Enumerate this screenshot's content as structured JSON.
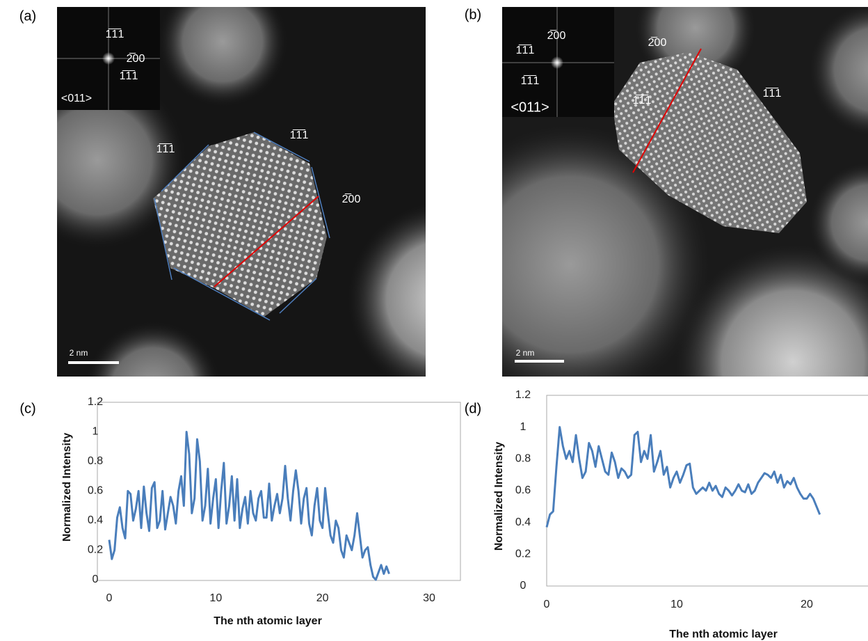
{
  "panel_labels": [
    "(a)",
    "(b)",
    "(c)",
    "(d)"
  ],
  "images": [
    {
      "inset_annotations": [
        "1̅1̅1",
        "2̅00",
        "1̅1̅1",
        "<011>"
      ],
      "annotations": [
        "1̅1̅1",
        "1̅1̅1",
        "2̅00"
      ],
      "scale_bar": "2 nm"
    },
    {
      "inset_annotations": [
        "2̅00",
        "1̅1̅1",
        "1̅1̅1",
        "<011>"
      ],
      "annotations": [
        "2̅00",
        "1̅1̅1",
        "1̅1̅1"
      ],
      "scale_bar": "2 nm"
    }
  ],
  "chart_data": [
    {
      "type": "line",
      "x_label": "The nth atomic layer",
      "y_label": "Normalized Intensity",
      "color": "#4a7ebb",
      "xlim": [
        0,
        30
      ],
      "xticks": [
        0,
        10,
        20,
        30
      ],
      "ylim": [
        0,
        1.2
      ],
      "yticks": [
        0,
        0.2,
        0.4,
        0.6,
        0.8,
        1,
        1.2
      ],
      "x": [
        0,
        0.25,
        0.5,
        0.75,
        1,
        1.25,
        1.5,
        1.75,
        2,
        2.25,
        2.5,
        2.75,
        3,
        3.25,
        3.5,
        3.75,
        4,
        4.25,
        4.5,
        4.75,
        5,
        5.25,
        5.5,
        5.75,
        6,
        6.25,
        6.5,
        6.75,
        7,
        7.25,
        7.5,
        7.75,
        8,
        8.25,
        8.5,
        8.75,
        9,
        9.25,
        9.5,
        9.75,
        10,
        10.25,
        10.5,
        10.75,
        11,
        11.25,
        11.5,
        11.75,
        12,
        12.25,
        12.5,
        12.75,
        13,
        13.25,
        13.5,
        13.75,
        14,
        14.25,
        14.5,
        14.75,
        15,
        15.25,
        15.5,
        15.75,
        16,
        16.25,
        16.5,
        16.75,
        17,
        17.25,
        17.5,
        17.75,
        18,
        18.25,
        18.5,
        18.75,
        19,
        19.25,
        19.5,
        19.75,
        20,
        20.25,
        20.5,
        20.75,
        21,
        21.25,
        21.5,
        21.75,
        22,
        22.25,
        22.5,
        22.75,
        23,
        23.25,
        23.5,
        23.75,
        24,
        24.25,
        24.5,
        24.75,
        25,
        25.25,
        25.5,
        25.75,
        26,
        26.25
      ],
      "values": [
        0.27,
        0.14,
        0.2,
        0.42,
        0.49,
        0.35,
        0.28,
        0.6,
        0.58,
        0.4,
        0.48,
        0.6,
        0.35,
        0.63,
        0.45,
        0.33,
        0.62,
        0.66,
        0.35,
        0.4,
        0.6,
        0.34,
        0.45,
        0.56,
        0.5,
        0.38,
        0.6,
        0.7,
        0.5,
        1.0,
        0.85,
        0.45,
        0.55,
        0.95,
        0.8,
        0.4,
        0.5,
        0.75,
        0.38,
        0.55,
        0.68,
        0.35,
        0.6,
        0.79,
        0.38,
        0.5,
        0.7,
        0.4,
        0.68,
        0.35,
        0.48,
        0.56,
        0.38,
        0.6,
        0.45,
        0.4,
        0.55,
        0.6,
        0.42,
        0.42,
        0.65,
        0.4,
        0.5,
        0.58,
        0.45,
        0.55,
        0.77,
        0.55,
        0.4,
        0.6,
        0.74,
        0.6,
        0.38,
        0.55,
        0.62,
        0.38,
        0.3,
        0.5,
        0.62,
        0.4,
        0.35,
        0.62,
        0.45,
        0.3,
        0.25,
        0.4,
        0.35,
        0.2,
        0.15,
        0.3,
        0.25,
        0.2,
        0.3,
        0.45,
        0.3,
        0.15,
        0.2,
        0.22,
        0.1,
        0.02,
        0.0,
        0.05,
        0.1,
        0.04,
        0.09,
        0.04
      ]
    },
    {
      "type": "line",
      "x_label": "The nth atomic layer",
      "y_label": "Normalized Intensity",
      "color": "#4a7ebb",
      "xlim": [
        0,
        25
      ],
      "xticks": [
        0,
        10,
        20
      ],
      "ylim": [
        0,
        1.2
      ],
      "yticks": [
        0,
        0.2,
        0.4,
        0.6,
        0.8,
        1,
        1.2
      ],
      "x": [
        0,
        0.25,
        0.5,
        0.75,
        1,
        1.25,
        1.5,
        1.75,
        2,
        2.25,
        2.5,
        2.75,
        3,
        3.25,
        3.5,
        3.75,
        4,
        4.25,
        4.5,
        4.75,
        5,
        5.25,
        5.5,
        5.75,
        6,
        6.25,
        6.5,
        6.75,
        7,
        7.25,
        7.5,
        7.75,
        8,
        8.25,
        8.5,
        8.75,
        9,
        9.25,
        9.5,
        9.75,
        10,
        10.25,
        10.5,
        10.75,
        11,
        11.25,
        11.5,
        11.75,
        12,
        12.25,
        12.5,
        12.75,
        13,
        13.25,
        13.5,
        13.75,
        14,
        14.25,
        14.5,
        14.75,
        15,
        15.25,
        15.5,
        15.75,
        16,
        16.25,
        16.5,
        16.75,
        17,
        17.25,
        17.5,
        17.75,
        18,
        18.25,
        18.5,
        18.75,
        19,
        19.25,
        19.5,
        19.75,
        20,
        20.25,
        20.5,
        20.75,
        21
      ],
      "values": [
        0.37,
        0.45,
        0.47,
        0.75,
        1.0,
        0.88,
        0.8,
        0.85,
        0.78,
        0.95,
        0.8,
        0.68,
        0.72,
        0.9,
        0.85,
        0.75,
        0.88,
        0.8,
        0.72,
        0.7,
        0.84,
        0.78,
        0.68,
        0.74,
        0.72,
        0.68,
        0.7,
        0.95,
        0.97,
        0.78,
        0.85,
        0.8,
        0.95,
        0.72,
        0.78,
        0.85,
        0.7,
        0.75,
        0.62,
        0.68,
        0.72,
        0.65,
        0.7,
        0.76,
        0.77,
        0.62,
        0.58,
        0.6,
        0.62,
        0.6,
        0.65,
        0.6,
        0.63,
        0.58,
        0.56,
        0.62,
        0.6,
        0.57,
        0.6,
        0.64,
        0.6,
        0.59,
        0.64,
        0.58,
        0.6,
        0.65,
        0.68,
        0.71,
        0.7,
        0.68,
        0.72,
        0.65,
        0.7,
        0.62,
        0.66,
        0.64,
        0.68,
        0.62,
        0.58,
        0.55,
        0.55,
        0.58,
        0.55,
        0.5,
        0.45
      ]
    }
  ]
}
